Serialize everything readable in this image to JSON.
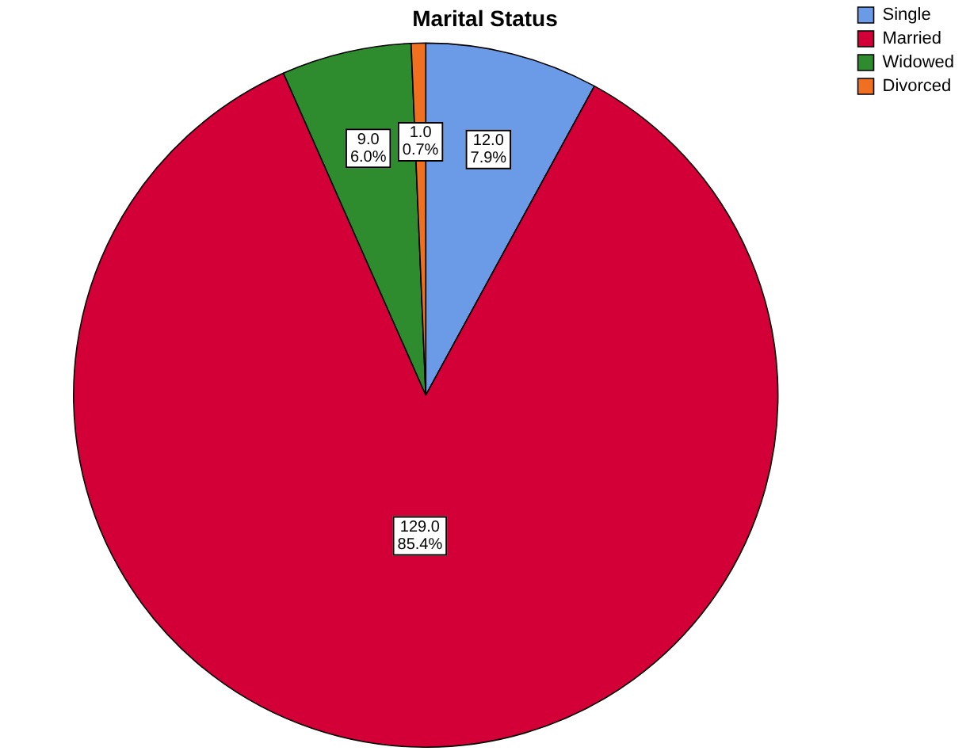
{
  "chart_data": {
    "type": "pie",
    "title": "Marital Status",
    "categories": [
      "Single",
      "Married",
      "Widowed",
      "Divorced"
    ],
    "values": [
      12.0,
      129.0,
      9.0,
      1.0
    ],
    "colors": [
      "#6b9be6",
      "#d20036",
      "#2e8b2e",
      "#f07022"
    ],
    "value_labels": [
      "12.0\n7.9%",
      "129.0\n85.4%",
      "9.0\n6.0%",
      "1.0\n0.7%"
    ],
    "legend": "top right"
  }
}
